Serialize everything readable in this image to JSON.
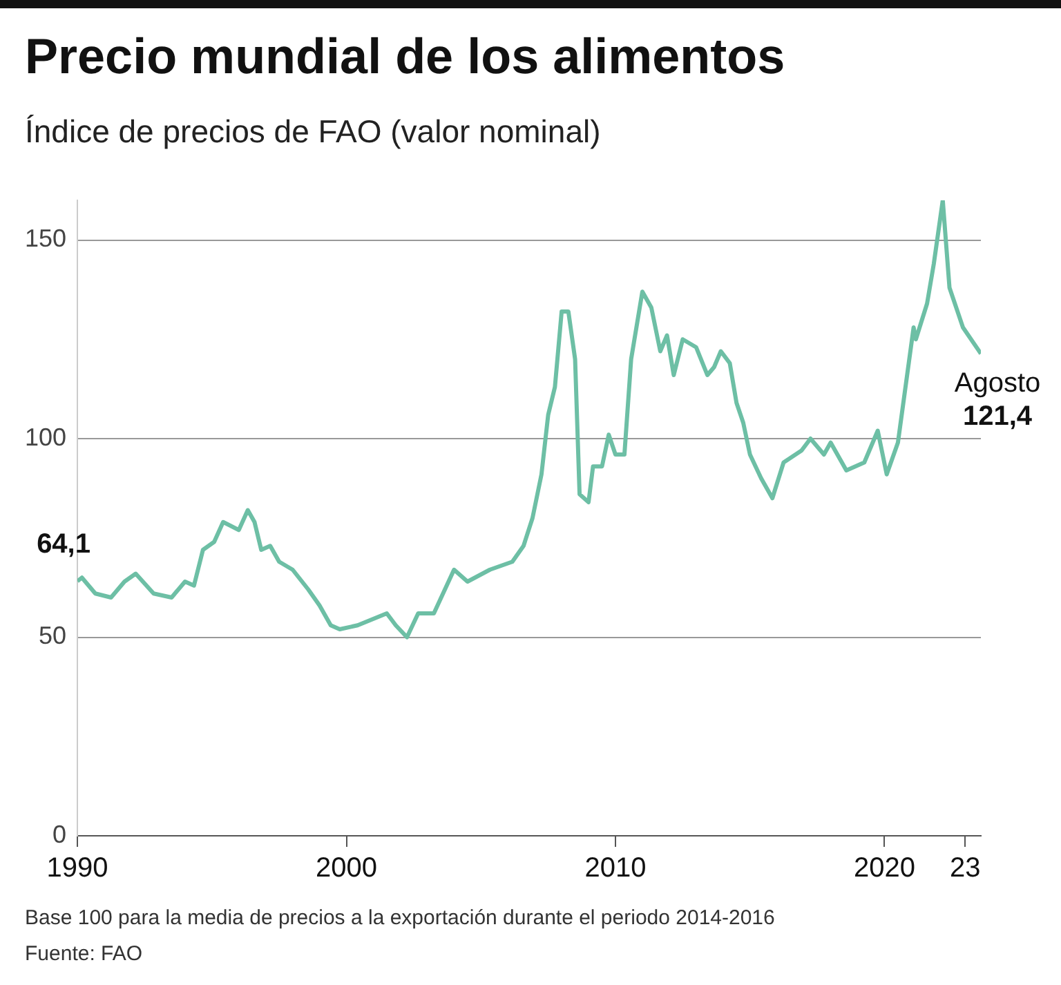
{
  "chart_data": {
    "type": "line",
    "title": "Precio mundial de los alimentos",
    "subtitle": "Índice de precios de FAO (valor nominal)",
    "x": [
      "1990-01",
      "1990-03",
      "1990-09",
      "1991-04",
      "1991-10",
      "1992-03",
      "1992-11",
      "1993-07",
      "1994-01",
      "1994-05",
      "1994-09",
      "1995-02",
      "1995-06",
      "1996-01",
      "1996-05",
      "1996-08",
      "1996-11",
      "1997-03",
      "1997-07",
      "1998-01",
      "1998-08",
      "1999-01",
      "1999-06",
      "1999-10",
      "2000-06",
      "2001-07",
      "2001-11",
      "2002-04",
      "2002-09",
      "2003-04",
      "2004-01",
      "2004-07",
      "2005-05",
      "2006-03",
      "2006-08",
      "2006-12",
      "2007-04",
      "2007-07",
      "2007-10",
      "2008-01",
      "2008-04",
      "2008-07",
      "2008-09",
      "2009-01",
      "2009-03",
      "2009-07",
      "2009-10",
      "2010-01",
      "2010-05",
      "2010-08",
      "2011-01",
      "2011-05",
      "2011-09",
      "2011-12",
      "2012-03",
      "2012-07",
      "2013-01",
      "2013-06",
      "2013-09",
      "2013-12",
      "2014-04",
      "2014-07",
      "2014-10",
      "2015-01",
      "2015-06",
      "2015-11",
      "2016-04",
      "2016-12",
      "2017-04",
      "2017-10",
      "2018-01",
      "2018-08",
      "2019-04",
      "2019-10",
      "2020-02",
      "2020-07",
      "2021-02",
      "2021-03",
      "2021-08",
      "2021-11",
      "2022-03",
      "2022-06",
      "2022-09",
      "2022-12",
      "2023-08"
    ],
    "series": [
      {
        "color": "#6dbfa5",
        "values": [
          64.1,
          65,
          61,
          60,
          64,
          66,
          61,
          60,
          64,
          63,
          72,
          74,
          79,
          77,
          82,
          79,
          72,
          73,
          69,
          67,
          62,
          58,
          53,
          52,
          53,
          56,
          53,
          50,
          56,
          56,
          67,
          64,
          67,
          69,
          73,
          80,
          91,
          106,
          113,
          132,
          132,
          120,
          86,
          84,
          93,
          93,
          101,
          96,
          96,
          120,
          137,
          133,
          122,
          126,
          116,
          125,
          123,
          116,
          118,
          122,
          119,
          109,
          104,
          96,
          90,
          85,
          94,
          97,
          100,
          96,
          99,
          92,
          94,
          102,
          91,
          99,
          128,
          125,
          134,
          144,
          160,
          138,
          133,
          128,
          121.4
        ]
      }
    ],
    "xlim": [
      "1990-01",
      "2023-08"
    ],
    "xticks": [
      {
        "value": "1990",
        "label": "1990"
      },
      {
        "value": "2000",
        "label": "2000"
      },
      {
        "value": "2010",
        "label": "2010"
      },
      {
        "value": "2020",
        "label": "2020"
      },
      {
        "value": "2023",
        "label": "23"
      }
    ],
    "ylim": [
      0,
      160
    ],
    "yticks": [
      0,
      50,
      100,
      150
    ],
    "grid": "y",
    "legend": false,
    "marker": "none",
    "line_style": "solid",
    "annotations": [
      {
        "text": "64,1",
        "x": "1990-01",
        "y": 64.1
      },
      {
        "text": "Agosto",
        "x": "2023-08",
        "y": 121.4
      },
      {
        "text": "121,4",
        "x": "2023-08",
        "y": 121.4
      },
      "Base 100 para la media de precios a la exportación durante el periodo 2014-2016",
      "Fuente: FAO"
    ]
  }
}
